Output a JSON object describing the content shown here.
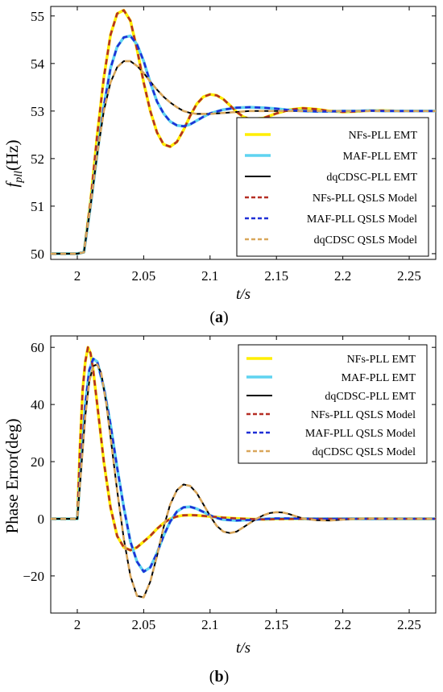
{
  "chart_data": [
    {
      "type": "line",
      "panel_label": "(a)",
      "ylabel_main": "f",
      "ylabel_sub": "pll",
      "ylabel_rest": "(Hz)",
      "xlabel": "t/s",
      "xlim": [
        1.98,
        2.27
      ],
      "ylim": [
        49.88,
        55.2
      ],
      "x_ticks": [
        2,
        2.05,
        2.1,
        2.15,
        2.2,
        2.25
      ],
      "x_tick_labels": [
        "2",
        "2.05",
        "2.1",
        "2.15",
        "2.2",
        "2.25"
      ],
      "y_ticks": [
        50,
        51,
        52,
        53,
        54,
        55
      ],
      "y_tick_labels": [
        "50",
        "51",
        "52",
        "53",
        "54",
        "55"
      ],
      "legend_position": "right",
      "series": [
        {
          "name": "NFs-PLL  EMT",
          "color": "#ffee00",
          "style": "solid",
          "x": [
            1.98,
            2.0,
            2.005,
            2.01,
            2.015,
            2.02,
            2.025,
            2.03,
            2.035,
            2.04,
            2.045,
            2.05,
            2.055,
            2.06,
            2.065,
            2.07,
            2.075,
            2.08,
            2.085,
            2.09,
            2.095,
            2.1,
            2.105,
            2.11,
            2.115,
            2.12,
            2.125,
            2.13,
            2.14,
            2.15,
            2.16,
            2.17,
            2.18,
            2.19,
            2.2,
            2.21,
            2.22,
            2.23,
            2.24,
            2.25,
            2.27
          ],
          "y": [
            50.0,
            50.0,
            50.03,
            51.1,
            52.5,
            53.7,
            54.6,
            55.05,
            55.12,
            54.9,
            54.3,
            53.6,
            53.0,
            52.55,
            52.3,
            52.25,
            52.35,
            52.6,
            52.9,
            53.15,
            53.3,
            53.35,
            53.33,
            53.25,
            53.12,
            52.98,
            52.88,
            52.83,
            52.85,
            52.95,
            53.03,
            53.06,
            53.04,
            53.0,
            52.98,
            52.99,
            53.01,
            53.01,
            53.0,
            53.0,
            53.0
          ]
        },
        {
          "name": "MAF-PLL  EMT",
          "color": "#5fd3f0",
          "style": "solid",
          "x": [
            1.98,
            2.0,
            2.005,
            2.01,
            2.015,
            2.02,
            2.025,
            2.03,
            2.035,
            2.04,
            2.045,
            2.05,
            2.055,
            2.06,
            2.065,
            2.07,
            2.075,
            2.08,
            2.085,
            2.09,
            2.095,
            2.1,
            2.11,
            2.12,
            2.13,
            2.14,
            2.15,
            2.16,
            2.17,
            2.18,
            2.19,
            2.2,
            2.21,
            2.22,
            2.23,
            2.25,
            2.27
          ],
          "y": [
            50.0,
            50.0,
            50.03,
            51.0,
            52.1,
            53.1,
            53.9,
            54.35,
            54.55,
            54.58,
            54.4,
            54.05,
            53.6,
            53.2,
            52.95,
            52.78,
            52.7,
            52.68,
            52.72,
            52.8,
            52.88,
            52.95,
            53.03,
            53.07,
            53.08,
            53.07,
            53.05,
            53.02,
            53.0,
            52.99,
            52.99,
            53.0,
            53.0,
            53.01,
            53.0,
            53.0,
            53.0
          ]
        },
        {
          "name": "dqCDSC-PLL  EMT",
          "color": "#000000",
          "style": "solid",
          "x": [
            1.98,
            2.0,
            2.005,
            2.01,
            2.015,
            2.02,
            2.025,
            2.03,
            2.035,
            2.04,
            2.045,
            2.05,
            2.055,
            2.06,
            2.065,
            2.07,
            2.075,
            2.08,
            2.085,
            2.09,
            2.1,
            2.11,
            2.12,
            2.13,
            2.14,
            2.15,
            2.16,
            2.17,
            2.18,
            2.2,
            2.22,
            2.24,
            2.27
          ],
          "y": [
            50.0,
            50.0,
            50.03,
            51.0,
            52.1,
            53.0,
            53.6,
            53.92,
            54.05,
            54.05,
            53.95,
            53.8,
            53.62,
            53.45,
            53.3,
            53.18,
            53.08,
            53.0,
            52.96,
            52.94,
            52.94,
            52.96,
            52.98,
            53.0,
            53.0,
            53.0,
            53.0,
            53.0,
            53.0,
            53.0,
            53.0,
            53.0,
            53.0
          ]
        },
        {
          "name": "NFs-PLL QSLS Model",
          "color": "#b52e24",
          "style": "dashed",
          "ref": 0
        },
        {
          "name": "MAF-PLL QSLS Model",
          "color": "#1f2fd6",
          "style": "dashed",
          "ref": 1
        },
        {
          "name": "dqCDSC QSLS Model",
          "color": "#d9a75c",
          "style": "dashed",
          "ref": 2
        }
      ]
    },
    {
      "type": "line",
      "panel_label": "(b)",
      "ylabel_main": "Phase Error(deg)",
      "xlabel": "t/s",
      "xlim": [
        1.98,
        2.27
      ],
      "ylim": [
        -33,
        64
      ],
      "x_ticks": [
        2,
        2.05,
        2.1,
        2.15,
        2.2,
        2.25
      ],
      "x_tick_labels": [
        "2",
        "2.05",
        "2.1",
        "2.15",
        "2.2",
        "2.25"
      ],
      "y_ticks": [
        -20,
        0,
        20,
        40,
        60
      ],
      "y_tick_labels": [
        "−20",
        "0",
        "20",
        "40",
        "60"
      ],
      "legend_position": "top-right",
      "series": [
        {
          "name": "NFs-PLL  EMT",
          "color": "#ffee00",
          "style": "solid",
          "x": [
            1.98,
            2.0,
            2.002,
            2.004,
            2.006,
            2.008,
            2.01,
            2.012,
            2.015,
            2.02,
            2.025,
            2.03,
            2.035,
            2.04,
            2.045,
            2.05,
            2.055,
            2.06,
            2.065,
            2.07,
            2.075,
            2.08,
            2.085,
            2.09,
            2.1,
            2.11,
            2.12,
            2.13,
            2.14,
            2.15,
            2.17,
            2.2,
            2.27
          ],
          "y": [
            0,
            0,
            25,
            45,
            55,
            60,
            58,
            52,
            40,
            20,
            4,
            -6,
            -10,
            -11,
            -10,
            -8,
            -6,
            -3.5,
            -1.5,
            0,
            0.8,
            1.2,
            1.3,
            1.2,
            0.8,
            0.4,
            0.1,
            -0.1,
            -0.2,
            -0.1,
            0,
            0,
            0
          ]
        },
        {
          "name": "MAF-PLL  EMT",
          "color": "#5fd3f0",
          "style": "solid",
          "x": [
            1.98,
            2.0,
            2.003,
            2.006,
            2.009,
            2.012,
            2.015,
            2.02,
            2.025,
            2.03,
            2.035,
            2.04,
            2.045,
            2.05,
            2.055,
            2.06,
            2.065,
            2.07,
            2.075,
            2.08,
            2.085,
            2.09,
            2.095,
            2.1,
            2.105,
            2.11,
            2.12,
            2.13,
            2.14,
            2.15,
            2.16,
            2.18,
            2.2,
            2.27
          ],
          "y": [
            0,
            0,
            20,
            40,
            52,
            56,
            55,
            46,
            33,
            18,
            4,
            -8,
            -15,
            -18.5,
            -17,
            -12,
            -6,
            -1,
            2.5,
            4,
            4.2,
            3.5,
            2.4,
            1.2,
            0.3,
            -0.3,
            -0.6,
            -0.4,
            -0.1,
            0.1,
            0.1,
            0,
            0,
            0
          ]
        },
        {
          "name": "dqCDSC-PLL  EMT",
          "color": "#000000",
          "style": "solid",
          "x": [
            1.98,
            2.0,
            2.003,
            2.006,
            2.009,
            2.012,
            2.015,
            2.018,
            2.022,
            2.026,
            2.03,
            2.035,
            2.04,
            2.045,
            2.05,
            2.055,
            2.06,
            2.065,
            2.07,
            2.075,
            2.08,
            2.085,
            2.09,
            2.095,
            2.1,
            2.105,
            2.11,
            2.115,
            2.12,
            2.125,
            2.13,
            2.135,
            2.14,
            2.145,
            2.15,
            2.155,
            2.16,
            2.165,
            2.17,
            2.18,
            2.19,
            2.2,
            2.21,
            2.22,
            2.24,
            2.27
          ],
          "y": [
            0,
            0,
            18,
            36,
            48,
            53.5,
            54,
            51,
            40,
            25,
            10,
            -7,
            -20,
            -27,
            -27.5,
            -22,
            -13,
            -3,
            5,
            10,
            12,
            11.5,
            9,
            5,
            1,
            -2.5,
            -4.5,
            -5,
            -4.5,
            -3,
            -1.5,
            0,
            1.2,
            2,
            2.3,
            2.2,
            1.6,
            0.8,
            0.1,
            -0.5,
            -0.6,
            -0.3,
            0,
            0.1,
            0,
            0
          ]
        },
        {
          "name": "NFs-PLL QSLS Model",
          "color": "#b52e24",
          "style": "dashed",
          "ref": 0
        },
        {
          "name": "MAF-PLL QSLS Model",
          "color": "#1f2fd6",
          "style": "dashed",
          "ref": 1
        },
        {
          "name": "dqCDSC QSLS Model",
          "color": "#d9a75c",
          "style": "dashed",
          "ref": 2
        }
      ]
    }
  ]
}
